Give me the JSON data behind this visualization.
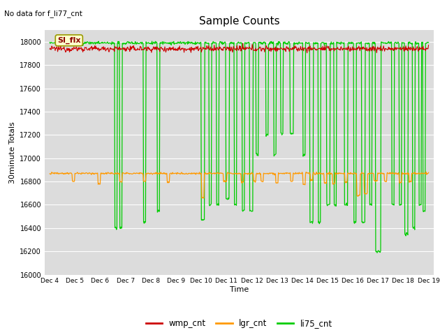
{
  "title": "Sample Counts",
  "top_left_text": "No data for f_li77_cnt",
  "annotation_text": "SI_flx",
  "xlabel": "Time",
  "ylabel": "30minute Totals",
  "ylim": [
    16000,
    18100
  ],
  "yticks": [
    16000,
    16200,
    16400,
    16600,
    16800,
    17000,
    17200,
    17400,
    17600,
    17800,
    18000
  ],
  "xtick_labels": [
    "Dec 4",
    "Dec 5",
    "Dec 6",
    "Dec 7",
    "Dec 8",
    "Dec 9",
    "Dec 10",
    "Dec 11",
    "Dec 12",
    "Dec 13",
    "Dec 14",
    "Dec 15",
    "Dec 16",
    "Dec 17",
    "Dec 18",
    "Dec 19"
  ],
  "wmp_color": "#cc0000",
  "lgr_color": "#ff9900",
  "li75_color": "#00cc00",
  "bg_color": "#dcdcdc",
  "legend_entries": [
    "wmp_cnt",
    "lgr_cnt",
    "li75_cnt"
  ],
  "wmp_base": 17940,
  "lgr_base": 16870,
  "li75_base": 17990
}
